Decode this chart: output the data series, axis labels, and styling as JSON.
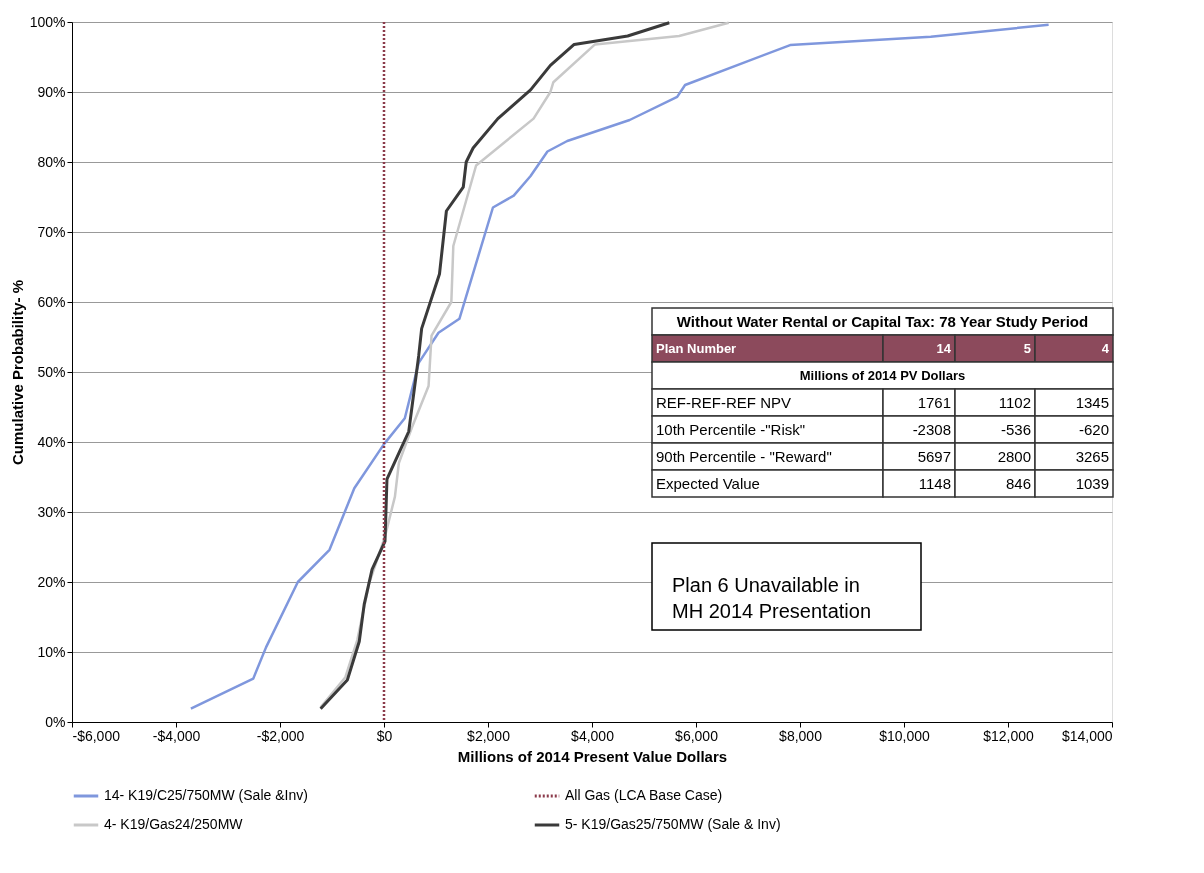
{
  "chart_data": {
    "type": "line",
    "xlabel": "Millions of 2014 Present Value Dollars",
    "ylabel": "Cumulative Probability- %",
    "xlim": [
      -6000,
      14000
    ],
    "xticks": [
      {
        "value": -6000,
        "label": "-$6,000"
      },
      {
        "value": -4000,
        "label": "-$4,000"
      },
      {
        "value": -2000,
        "label": "-$2,000"
      },
      {
        "value": 0,
        "label": "$0"
      },
      {
        "value": 2000,
        "label": "$2,000"
      },
      {
        "value": 4000,
        "label": "$4,000"
      },
      {
        "value": 6000,
        "label": "$6,000"
      },
      {
        "value": 8000,
        "label": "$8,000"
      },
      {
        "value": 10000,
        "label": "$10,000"
      },
      {
        "value": 12000,
        "label": "$12,000"
      },
      {
        "value": 14000,
        "label": "$14,000"
      }
    ],
    "ylim": [
      0,
      100
    ],
    "yticks": [
      {
        "value": 0,
        "label": "0%"
      },
      {
        "value": 10,
        "label": "10%"
      },
      {
        "value": 20,
        "label": "20%"
      },
      {
        "value": 30,
        "label": "30%"
      },
      {
        "value": 40,
        "label": "40%"
      },
      {
        "value": 50,
        "label": "50%"
      },
      {
        "value": 60,
        "label": "60%"
      },
      {
        "value": 70,
        "label": "70%"
      },
      {
        "value": 80,
        "label": "80%"
      },
      {
        "value": 90,
        "label": "90%"
      },
      {
        "value": 100,
        "label": "100%"
      }
    ],
    "grid": "y",
    "legend": "bottom",
    "marker": "none",
    "line_style": "solid",
    "series": [
      {
        "name": "14- K19/C25/750MW (Sale &Inv)",
        "color": "#7f97dd",
        "x": [
          -3714,
          -2514,
          -2267,
          -1657,
          -1048,
          -571,
          0,
          400,
          667,
          1048,
          1450,
          2095,
          2495,
          2819,
          3143,
          3524,
          4724,
          5638,
          5790,
          7810,
          10514,
          12781
        ],
        "values": [
          1.9,
          6.2,
          10.7,
          20,
          24.6,
          33.4,
          39.7,
          43.4,
          51.3,
          55.6,
          57.6,
          73.5,
          75.2,
          78,
          81.5,
          83,
          86,
          89.3,
          91,
          96.7,
          97.9,
          99.6
        ]
      },
      {
        "name": "4- K19/Gas24/250MW",
        "color": "#c8c8c8",
        "x": [
          -1219,
          -743,
          -514,
          -286,
          19,
          210,
          286,
          533,
          857,
          914,
          1295,
          1333,
          1733,
          1771,
          2876,
          3200,
          3257,
          4057,
          5676,
          6629
        ],
        "values": [
          2.1,
          6.4,
          11.7,
          19.8,
          26.5,
          32.2,
          37,
          42,
          48,
          55.2,
          60,
          68,
          78.5,
          79.5,
          86.2,
          90,
          91.4,
          96.8,
          98,
          99.9
        ]
      },
      {
        "name": "5- K19/Gas25/750MW (Sale & Inv)",
        "color": "#3a3a3a",
        "x": [
          -1219,
          -705,
          -476,
          -381,
          -229,
          19,
          57,
          286,
          476,
          667,
          724,
          1067,
          1200,
          1524,
          1581,
          1714,
          2190,
          2819,
          3200,
          3657,
          4686,
          5486
        ],
        "values": [
          1.9,
          6,
          11.5,
          16.8,
          21.8,
          25.8,
          34.7,
          38.4,
          41.5,
          52.3,
          56.2,
          64,
          73,
          76.4,
          80,
          82,
          86.2,
          90.3,
          93.8,
          96.8,
          98,
          99.9
        ]
      }
    ],
    "ref_lines": [
      {
        "axis": "x",
        "value": 0,
        "label": "All Gas (LCA Base Case)",
        "color": "#8b3a4a",
        "line_style": "dotted"
      }
    ],
    "annotations": [
      "Without Water Rental or Capital Tax: 78 Year Study Period",
      "Plan Number",
      "14",
      "5",
      "4",
      "Millions of 2014 PV Dollars",
      "REF-REF-REF NPV",
      "1761",
      "1102",
      "1345",
      "10th Percentile -\"Risk\"",
      "-2308",
      "-536",
      "-620",
      "90th Percentile - \"Reward\"",
      "5697",
      "2800",
      "3265",
      "Expected Value",
      "1148",
      "846",
      "1039",
      "Plan 6 Unavailable in\nMH 2014 Presentation"
    ]
  }
}
